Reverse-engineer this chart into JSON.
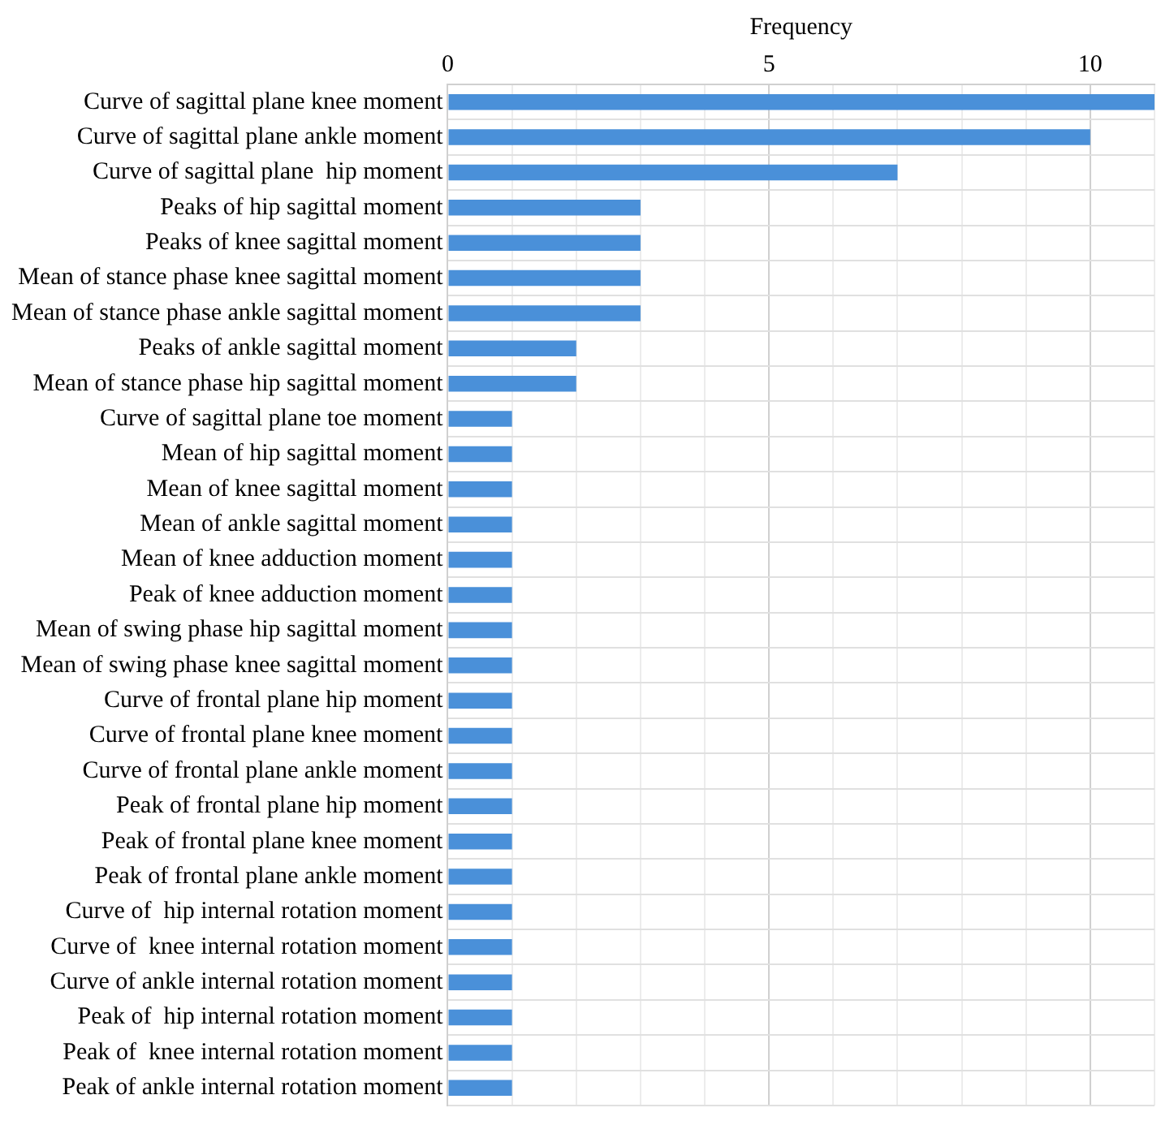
{
  "chart_data": {
    "type": "bar",
    "orientation": "horizontal",
    "xlabel": "Frequency",
    "color": "#4a90d9",
    "grid": true,
    "categories": [
      "Curve of sagittal plane knee moment",
      "Curve of sagittal plane ankle moment",
      "Curve of sagittal plane  hip moment",
      "Peaks of hip sagittal moment",
      "Peaks of knee sagittal moment",
      "Mean of stance phase knee sagittal moment",
      "Mean of stance phase ankle sagittal moment",
      "Peaks of ankle sagittal moment",
      "Mean of stance phase hip sagittal moment",
      "Curve of sagittal plane toe moment",
      "Mean of hip sagittal moment",
      "Mean of knee sagittal moment",
      "Mean of ankle sagittal moment",
      "Mean of knee adduction moment",
      "Peak of knee adduction moment",
      "Mean of swing phase hip sagittal moment",
      "Mean of swing phase knee sagittal moment",
      "Curve of frontal plane hip moment",
      "Curve of frontal plane knee moment",
      "Curve of frontal plane ankle moment",
      "Peak of frontal plane hip moment",
      "Peak of frontal plane knee moment",
      "Peak of frontal plane ankle moment",
      "Curve of  hip internal rotation moment",
      "Curve of  knee internal rotation moment",
      "Curve of ankle internal rotation moment",
      "Peak of  hip internal rotation moment",
      "Peak of  knee internal rotation moment",
      "Peak of ankle internal rotation moment"
    ],
    "values": [
      11,
      10,
      7,
      3,
      3,
      3,
      3,
      2,
      2,
      1,
      1,
      1,
      1,
      1,
      1,
      1,
      1,
      1,
      1,
      1,
      1,
      1,
      1,
      1,
      1,
      1,
      1,
      1,
      1
    ],
    "xlim": [
      0,
      11
    ],
    "xticks": [
      0,
      {
        "value": 1,
        "label": null
      },
      {
        "value": 2,
        "label": null
      },
      {
        "value": 3,
        "label": null
      },
      {
        "value": 4,
        "label": null
      },
      5,
      {
        "value": 6,
        "label": null
      },
      {
        "value": 7,
        "label": null
      },
      {
        "value": 8,
        "label": null
      },
      {
        "value": 9,
        "label": null
      },
      10,
      {
        "value": 11,
        "label": null
      }
    ]
  }
}
